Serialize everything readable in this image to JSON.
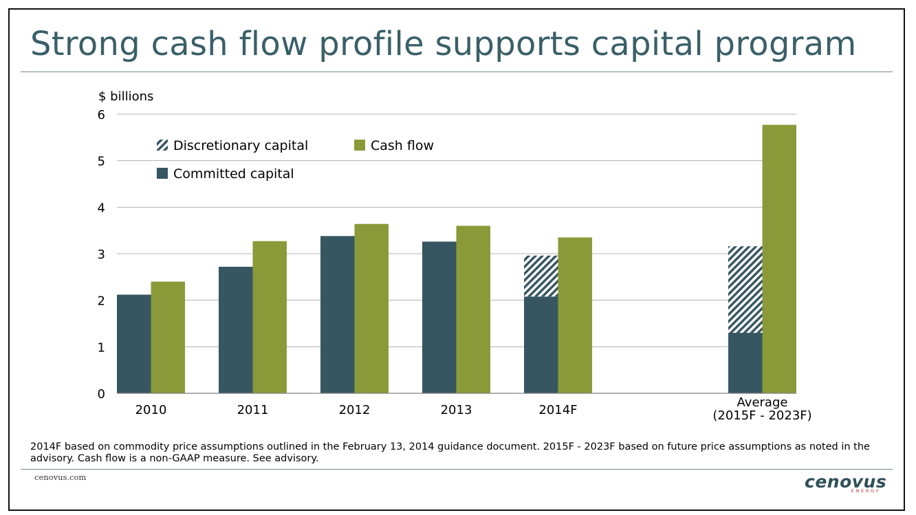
{
  "title": "Strong cash flow profile supports capital program",
  "footnote": "2014F based on commodity price assumptions outlined in the February 13, 2014 guidance document. 2015F - 2023F based on future price assumptions as noted in the advisory. Cash flow is a non-GAAP measure. See advisory.",
  "website": "cenovus.com",
  "logo": {
    "name": "cenovus",
    "sub": "ENERGY"
  },
  "colors": {
    "committed": "#365762",
    "cash_flow": "#8a9a38",
    "discretionary_stripe": "#365762",
    "title": "#3a5f68",
    "grid": "#b0b0b0"
  },
  "chart_data": {
    "type": "bar",
    "ylabel": "$ billions",
    "ylim": [
      0,
      6
    ],
    "yticks": [
      "0",
      "1",
      "2",
      "3",
      "4",
      "5",
      "6"
    ],
    "categories": [
      "2010",
      "2011",
      "2012",
      "2013",
      "2014F",
      "Average (2015F - 2023F)"
    ],
    "category_lines": [
      [
        "2010"
      ],
      [
        "2011"
      ],
      [
        "2012"
      ],
      [
        "2013"
      ],
      [
        "2014F"
      ],
      [
        "Average",
        "(2015F - 2023F)"
      ]
    ],
    "series": [
      {
        "name": "Committed capital",
        "stack": "capital",
        "values": [
          2.12,
          2.72,
          3.38,
          3.26,
          2.08,
          1.3
        ]
      },
      {
        "name": "Discretionary capital",
        "stack": "capital",
        "values": [
          0,
          0,
          0,
          0,
          0.88,
          1.86
        ]
      },
      {
        "name": "Cash flow",
        "stack": "cash",
        "values": [
          2.4,
          3.27,
          3.64,
          3.6,
          3.35,
          5.77
        ]
      }
    ],
    "legend": [
      {
        "name": "Discretionary capital",
        "style": "hatch"
      },
      {
        "name": "Cash flow",
        "style": "cash"
      },
      {
        "name": "Committed capital",
        "style": "committed"
      }
    ],
    "legend_position": "top-left",
    "grid": true
  }
}
